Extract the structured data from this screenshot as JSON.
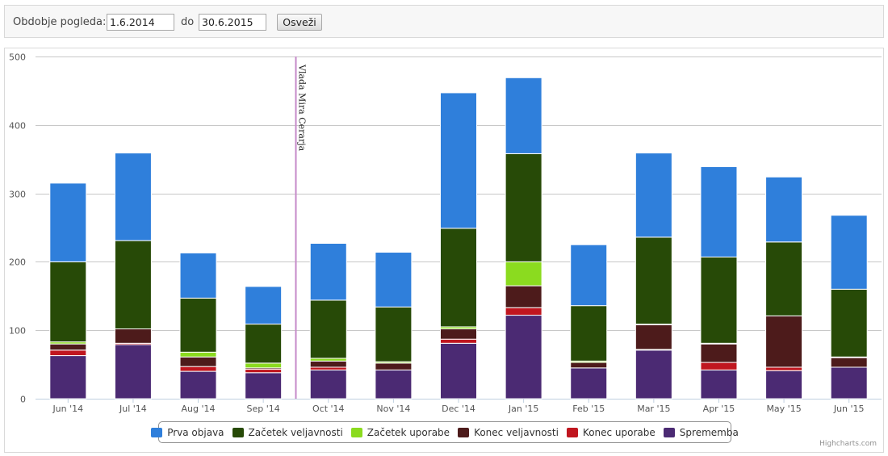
{
  "filter": {
    "label": "Obdobje pogleda:",
    "from_value": "1.6.2014",
    "to_label": "do",
    "to_value": "30.6.2015",
    "refresh_label": "Osveži"
  },
  "credits": "Highcharts.com",
  "chart_data": {
    "type": "bar",
    "stacked": true,
    "categories": [
      "Jun '14",
      "Jul '14",
      "Aug '14",
      "Sep '14",
      "Oct '14",
      "Nov '14",
      "Dec '14",
      "Jan '15",
      "Feb '15",
      "Mar '15",
      "Apr '15",
      "May '15",
      "Jun '15"
    ],
    "ylim": [
      0,
      500
    ],
    "yticks": [
      0,
      100,
      200,
      300,
      400,
      500
    ],
    "grid": true,
    "legend_position": "bottom-center",
    "series": [
      {
        "name": "Sprememba",
        "color": "#4b2a73",
        "values": [
          63,
          79,
          40,
          38,
          42,
          42,
          81,
          122,
          45,
          71,
          42,
          41,
          46
        ]
      },
      {
        "name": "Konec uporabe",
        "color": "#c0161f",
        "values": [
          8,
          2,
          7,
          5,
          4,
          0,
          6,
          11,
          0,
          1,
          11,
          5,
          0
        ]
      },
      {
        "name": "Konec veljavnosti",
        "color": "#4d1b1b",
        "values": [
          9,
          21,
          14,
          2,
          9,
          10,
          15,
          32,
          8,
          36,
          27,
          75,
          14
        ]
      },
      {
        "name": "Začetek uporabe",
        "color": "#8bdb1f",
        "values": [
          3,
          0,
          7,
          7,
          4,
          2,
          3,
          35,
          2,
          1,
          1,
          0,
          1
        ]
      },
      {
        "name": "Začetek veljavnosti",
        "color": "#274a07",
        "values": [
          117,
          129,
          79,
          57,
          85,
          80,
          144,
          158,
          81,
          127,
          126,
          108,
          99
        ]
      },
      {
        "name": "Prva objava",
        "color": "#2f7fdb",
        "values": [
          115,
          128,
          66,
          55,
          83,
          80,
          198,
          111,
          89,
          123,
          132,
          95,
          108
        ]
      }
    ],
    "annotations": [
      {
        "text": "Vlada Mira Cerarja",
        "color": "#c58ac8",
        "between": [
          "Sep '14",
          "Oct '14"
        ]
      }
    ]
  },
  "legend": [
    {
      "name": "Prva objava",
      "color": "#2f7fdb"
    },
    {
      "name": "Začetek veljavnosti",
      "color": "#274a07"
    },
    {
      "name": "Začetek uporabe",
      "color": "#8bdb1f"
    },
    {
      "name": "Konec veljavnosti",
      "color": "#4d1b1b"
    },
    {
      "name": "Konec uporabe",
      "color": "#c0161f"
    },
    {
      "name": "Sprememba",
      "color": "#4b2a73"
    }
  ]
}
